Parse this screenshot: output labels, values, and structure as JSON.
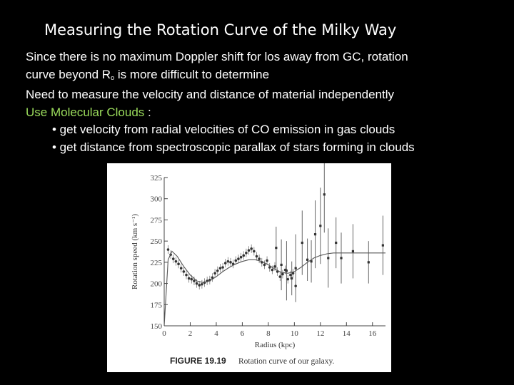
{
  "slide": {
    "title": "Measuring the Rotation Curve of the Milky Way",
    "line1": "Since there is no maximum Doppler shift for los away from GC, rotation",
    "line2_pre": "curve beyond R",
    "line2_sub": "o",
    "line2_post": " is more difficult to determine",
    "line3": "Need to measure the velocity and distance of material independently",
    "line4_green": "Use Molecular Clouds",
    "line4_post": " :",
    "bullet1": "• get velocity from radial velocities of CO emission in gas clouds",
    "bullet2": "• get distance from spectroscopic parallax of stars forming in clouds",
    "colors": {
      "background": "#000000",
      "text": "#ffffff",
      "highlight": "#9bdc5c"
    }
  },
  "figure": {
    "label": "FIGURE 19.19",
    "caption": "Rotation curve of our galaxy."
  },
  "chart_data": {
    "type": "scatter",
    "xlabel": "Radius (kpc)",
    "ylabel": "Rotation speed (km s⁻¹)",
    "xlim": [
      0,
      17
    ],
    "ylim": [
      150,
      325
    ],
    "xticks": [
      0,
      2,
      4,
      6,
      8,
      10,
      12,
      14,
      16
    ],
    "yticks": [
      150,
      175,
      200,
      225,
      250,
      275,
      300,
      325
    ],
    "grid": false,
    "model_curve": {
      "x": [
        0,
        0.3,
        0.6,
        1.0,
        1.5,
        2.0,
        2.5,
        3.0,
        3.5,
        4.0,
        4.5,
        5.0,
        5.5,
        6.0,
        6.5,
        7.0,
        7.5,
        8.0,
        8.5,
        9.0,
        9.5,
        10.0,
        10.5,
        11.0,
        11.5,
        12.0,
        12.5,
        13.0,
        13.5,
        14.0,
        15.0,
        16.0,
        17.0
      ],
      "y": [
        150,
        228,
        238,
        232,
        220,
        210,
        203,
        201,
        203,
        208,
        214,
        219,
        223,
        226,
        228,
        228,
        226,
        222,
        217,
        213,
        212,
        214,
        219,
        225,
        230,
        233,
        235,
        236,
        236,
        236,
        236,
        236,
        236
      ]
    },
    "points": {
      "x": [
        0.3,
        0.5,
        0.7,
        0.9,
        1.1,
        1.3,
        1.5,
        1.7,
        1.9,
        2.1,
        2.3,
        2.5,
        2.7,
        2.9,
        3.1,
        3.3,
        3.5,
        3.7,
        3.9,
        4.1,
        4.3,
        4.5,
        4.7,
        4.9,
        5.1,
        5.3,
        5.5,
        5.7,
        5.9,
        6.1,
        6.3,
        6.5,
        6.7,
        6.9,
        7.1,
        7.3,
        7.5,
        7.7,
        7.9,
        8.1,
        8.3,
        8.5,
        8.7,
        8.9,
        9.1,
        9.3,
        9.5,
        9.7,
        9.9,
        10.1
      ],
      "y": [
        240,
        234,
        229,
        226,
        223,
        218,
        214,
        210,
        206,
        205,
        203,
        200,
        198,
        199,
        201,
        203,
        204,
        207,
        212,
        215,
        218,
        219,
        224,
        226,
        225,
        223,
        227,
        229,
        231,
        233,
        236,
        239,
        241,
        238,
        232,
        229,
        225,
        222,
        227,
        219,
        216,
        220,
        214,
        208,
        211,
        216,
        205,
        210,
        212,
        197
      ]
    },
    "error_bar_points": {
      "x": [
        8.6,
        9.0,
        9.4,
        9.8,
        10.1,
        10.6,
        11.0,
        11.3,
        11.6,
        12.0,
        12.3,
        12.6,
        13.2,
        13.6,
        14.5,
        15.7,
        16.8
      ],
      "y": [
        242,
        222,
        215,
        206,
        218,
        248,
        228,
        226,
        258,
        268,
        305,
        230,
        248,
        230,
        238,
        225,
        245
      ],
      "err": [
        25,
        30,
        35,
        20,
        40,
        38,
        25,
        25,
        40,
        45,
        45,
        35,
        30,
        30,
        32,
        25,
        35
      ]
    }
  }
}
